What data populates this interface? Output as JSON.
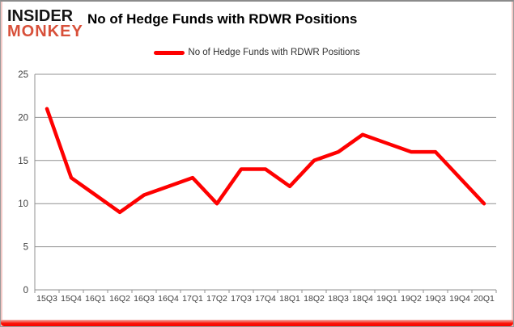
{
  "brand": {
    "line1": "INSIDER",
    "line2": "MONKEY",
    "accent_color": "#d8503a",
    "text_color": "#151515"
  },
  "title": "No of Hedge Funds with RDWR Positions",
  "legend": {
    "label": "No of Hedge Funds with RDWR Positions",
    "marker_color": "#fe0000"
  },
  "chart_data": {
    "type": "line",
    "title": "No of Hedge Funds with RDWR Positions",
    "categories": [
      "15Q3",
      "15Q4",
      "16Q1",
      "16Q2",
      "16Q3",
      "16Q4",
      "17Q1",
      "17Q2",
      "17Q3",
      "17Q4",
      "18Q1",
      "18Q2",
      "18Q3",
      "18Q4",
      "19Q1",
      "19Q2",
      "19Q3",
      "19Q4",
      "20Q1"
    ],
    "series": [
      {
        "name": "No of Hedge Funds with RDWR Positions",
        "values": [
          21,
          13,
          11,
          9,
          11,
          12,
          13,
          10,
          14,
          14,
          12,
          15,
          16,
          18,
          17,
          16,
          16,
          13,
          10
        ],
        "color": "#fe0000"
      }
    ],
    "xlabel": "",
    "ylabel": "",
    "ylim": [
      0,
      25
    ],
    "ytick_interval": 5,
    "yticks": [
      0,
      5,
      10,
      15,
      20,
      25
    ],
    "grid": "horizontal",
    "legend_position": "top",
    "gridline_color": "#909090",
    "axis_color": "#909090",
    "tick_label_color": "#3f3f3f"
  }
}
